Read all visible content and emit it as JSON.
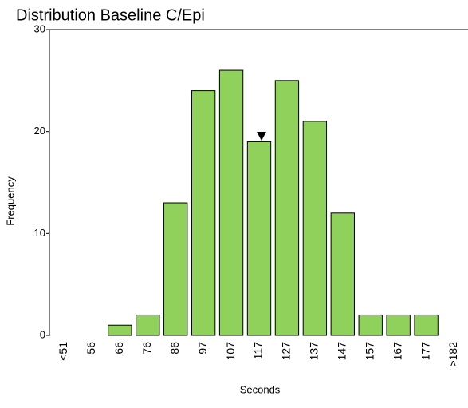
{
  "chart_data": {
    "type": "bar",
    "title": "Distribution Baseline C/Epi",
    "x_label": "Seconds",
    "y_label": "Frequency",
    "categories": [
      "<51",
      "56",
      "66",
      "76",
      "86",
      "97",
      "107",
      "117",
      "127",
      "137",
      "147",
      "157",
      "167",
      "177",
      ">182"
    ],
    "values": [
      0,
      0,
      1,
      2,
      13,
      24,
      26,
      19,
      25,
      21,
      12,
      2,
      2,
      2,
      0
    ],
    "color": "#8fd15a",
    "ylim": [
      0,
      30
    ],
    "yticks": [
      0,
      10,
      20,
      30
    ],
    "grid": false
  }
}
